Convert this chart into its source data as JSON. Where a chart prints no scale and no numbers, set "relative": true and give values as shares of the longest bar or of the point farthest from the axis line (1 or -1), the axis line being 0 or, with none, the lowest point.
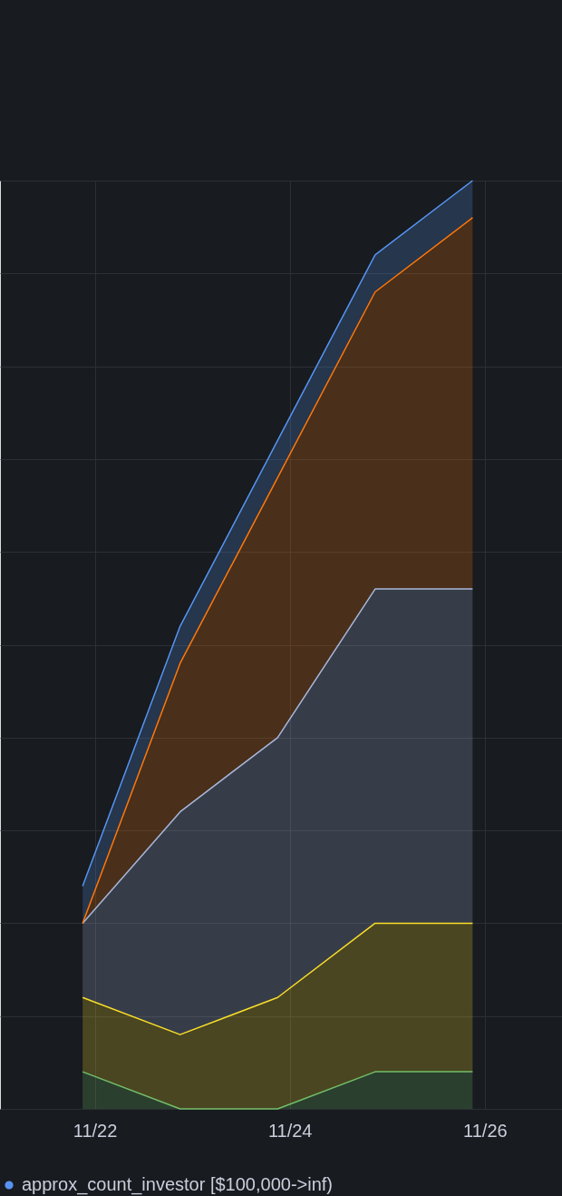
{
  "chart_data": {
    "type": "area",
    "stacked": true,
    "relative": true,
    "x": [
      "--11-21T21:00",
      "--11-22T21:00",
      "--11-23T21:00",
      "--11-24T21:00",
      "--11-25T21:00"
    ],
    "xlim": [
      "--11-21T00:40",
      "--11-26T19:00"
    ],
    "xticks": [
      {
        "value": "--11-22",
        "label": "11/22"
      },
      {
        "value": "--11-24",
        "label": "11/24"
      },
      {
        "value": "--11-26",
        "label": "11/26"
      }
    ],
    "series": [
      {
        "color": "#73bf69",
        "values": [
          0.04,
          0,
          0,
          0.04,
          0.04
        ]
      },
      {
        "color": "#fade2a",
        "values": [
          0.08,
          0.08,
          0.12,
          0.16,
          0.16
        ]
      },
      {
        "color": "#a8b8dc",
        "values": [
          0.08,
          0.24,
          0.28,
          0.36,
          0.36
        ]
      },
      {
        "color": "#ff780a",
        "values": [
          0,
          0.16,
          0.28,
          0.32,
          0.4
        ]
      },
      {
        "name": "approx_count_investor [$100,000->inf)",
        "color": "#5794f2",
        "values": [
          0.04,
          0.04,
          0.04,
          0.04,
          0.04
        ]
      }
    ],
    "grid": true,
    "legend": "bottom left"
  }
}
